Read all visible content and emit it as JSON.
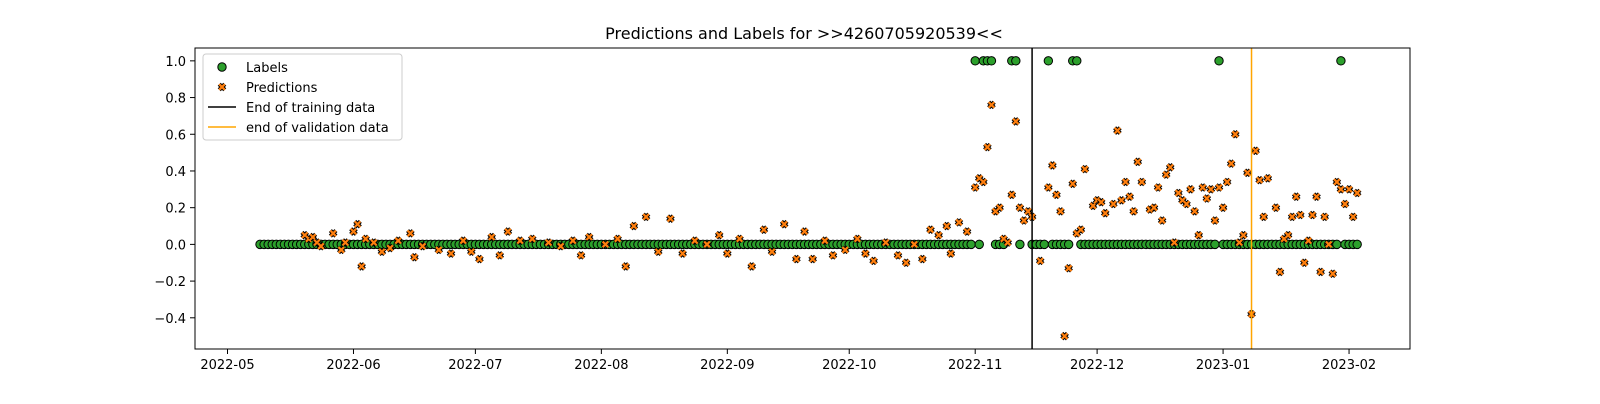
{
  "chart_data": {
    "type": "scatter",
    "title": "Predictions and Labels for >>4260705920539<<",
    "xlabel": "",
    "ylabel": "",
    "x_axis": {
      "type": "date",
      "range": [
        "2022-04-23",
        "2023-02-16"
      ],
      "tick_values": [
        "2022-05-01",
        "2022-06-01",
        "2022-07-01",
        "2022-08-01",
        "2022-09-01",
        "2022-10-01",
        "2022-11-01",
        "2022-12-01",
        "2023-01-01",
        "2023-02-01"
      ],
      "tick_labels": [
        "2022-05",
        "2022-06",
        "2022-07",
        "2022-08",
        "2022-09",
        "2022-10",
        "2022-11",
        "2022-12",
        "2023-01",
        "2023-02"
      ]
    },
    "y_axis": {
      "range": [
        -0.57,
        1.07
      ],
      "tick_values": [
        -0.4,
        -0.2,
        0.0,
        0.2,
        0.4,
        0.6,
        0.8,
        1.0
      ],
      "tick_labels": [
        "−0.4",
        "−0.2",
        "0.0",
        "0.2",
        "0.4",
        "0.6",
        "0.8",
        "1.0"
      ]
    },
    "grid": false,
    "legend_position": "top-left",
    "legend": [
      {
        "label": "Labels",
        "marker": "circle",
        "color": "#2ca02c"
      },
      {
        "label": "Predictions",
        "marker": "x",
        "color": "#ff7f0e"
      },
      {
        "label": "End of training data",
        "marker": "line",
        "color": "#000000"
      },
      {
        "label": "end of validation data",
        "marker": "line",
        "color": "#ffa500"
      }
    ],
    "vertical_lines": [
      {
        "label": "End of training data",
        "x": "2022-11-15",
        "color": "#000000"
      },
      {
        "label": "end of validation data",
        "x": "2023-01-08",
        "color": "#ffa500"
      }
    ],
    "series": [
      {
        "name": "Labels",
        "start": "2022-05-09",
        "end": "2023-02-03",
        "default_value": 0,
        "ones": [
          "2022-11-01",
          "2022-11-03",
          "2022-11-04",
          "2022-11-05",
          "2022-11-10",
          "2022-11-11",
          "2022-11-19",
          "2022-11-25",
          "2022-11-26",
          "2022-12-31",
          "2023-01-30"
        ],
        "gaps": [
          "2022-11-09",
          "2022-11-13",
          "2022-11-14"
        ]
      },
      {
        "name": "Predictions",
        "points": [
          [
            "2022-05-20",
            0.05
          ],
          [
            "2022-05-21",
            0.03
          ],
          [
            "2022-05-22",
            0.04
          ],
          [
            "2022-05-23",
            0.01
          ],
          [
            "2022-05-24",
            -0.01
          ],
          [
            "2022-05-27",
            0.06
          ],
          [
            "2022-05-29",
            -0.03
          ],
          [
            "2022-05-30",
            0.01
          ],
          [
            "2022-06-01",
            0.07
          ],
          [
            "2022-06-02",
            0.11
          ],
          [
            "2022-06-03",
            -0.12
          ],
          [
            "2022-06-04",
            0.03
          ],
          [
            "2022-06-06",
            0.01
          ],
          [
            "2022-06-08",
            -0.04
          ],
          [
            "2022-06-10",
            -0.02
          ],
          [
            "2022-06-12",
            0.02
          ],
          [
            "2022-06-15",
            0.06
          ],
          [
            "2022-06-16",
            -0.07
          ],
          [
            "2022-06-18",
            -0.01
          ],
          [
            "2022-06-22",
            -0.03
          ],
          [
            "2022-06-25",
            -0.05
          ],
          [
            "2022-06-28",
            0.02
          ],
          [
            "2022-06-30",
            -0.04
          ],
          [
            "2022-07-02",
            -0.08
          ],
          [
            "2022-07-05",
            0.04
          ],
          [
            "2022-07-07",
            -0.06
          ],
          [
            "2022-07-09",
            0.07
          ],
          [
            "2022-07-12",
            0.02
          ],
          [
            "2022-07-15",
            0.03
          ],
          [
            "2022-07-19",
            0.01
          ],
          [
            "2022-07-22",
            -0.01
          ],
          [
            "2022-07-25",
            0.02
          ],
          [
            "2022-07-27",
            -0.06
          ],
          [
            "2022-07-29",
            0.04
          ],
          [
            "2022-08-02",
            0.0
          ],
          [
            "2022-08-05",
            0.03
          ],
          [
            "2022-08-07",
            -0.12
          ],
          [
            "2022-08-09",
            0.1
          ],
          [
            "2022-08-12",
            0.15
          ],
          [
            "2022-08-15",
            -0.04
          ],
          [
            "2022-08-18",
            0.14
          ],
          [
            "2022-08-21",
            -0.05
          ],
          [
            "2022-08-24",
            0.02
          ],
          [
            "2022-08-27",
            0.0
          ],
          [
            "2022-08-30",
            0.05
          ],
          [
            "2022-09-01",
            -0.05
          ],
          [
            "2022-09-04",
            0.03
          ],
          [
            "2022-09-07",
            -0.12
          ],
          [
            "2022-09-10",
            0.08
          ],
          [
            "2022-09-12",
            -0.04
          ],
          [
            "2022-09-15",
            0.11
          ],
          [
            "2022-09-18",
            -0.08
          ],
          [
            "2022-09-20",
            0.07
          ],
          [
            "2022-09-22",
            -0.08
          ],
          [
            "2022-09-25",
            0.02
          ],
          [
            "2022-09-27",
            -0.06
          ],
          [
            "2022-09-30",
            -0.03
          ],
          [
            "2022-10-03",
            0.03
          ],
          [
            "2022-10-05",
            -0.05
          ],
          [
            "2022-10-07",
            -0.09
          ],
          [
            "2022-10-10",
            0.01
          ],
          [
            "2022-10-13",
            -0.06
          ],
          [
            "2022-10-15",
            -0.1
          ],
          [
            "2022-10-17",
            0.0
          ],
          [
            "2022-10-19",
            -0.08
          ],
          [
            "2022-10-21",
            0.08
          ],
          [
            "2022-10-23",
            0.05
          ],
          [
            "2022-10-25",
            0.1
          ],
          [
            "2022-10-26",
            -0.05
          ],
          [
            "2022-10-28",
            0.12
          ],
          [
            "2022-10-30",
            0.07
          ],
          [
            "2022-11-01",
            0.31
          ],
          [
            "2022-11-02",
            0.36
          ],
          [
            "2022-11-03",
            0.34
          ],
          [
            "2022-11-04",
            0.53
          ],
          [
            "2022-11-05",
            0.76
          ],
          [
            "2022-11-06",
            0.18
          ],
          [
            "2022-11-07",
            0.2
          ],
          [
            "2022-11-08",
            0.03
          ],
          [
            "2022-11-09",
            0.01
          ],
          [
            "2022-11-10",
            0.27
          ],
          [
            "2022-11-11",
            0.67
          ],
          [
            "2022-11-12",
            0.2
          ],
          [
            "2022-11-13",
            0.13
          ],
          [
            "2022-11-14",
            0.18
          ],
          [
            "2022-11-15",
            0.15
          ],
          [
            "2022-11-17",
            -0.09
          ],
          [
            "2022-11-19",
            0.31
          ],
          [
            "2022-11-20",
            0.43
          ],
          [
            "2022-11-21",
            0.27
          ],
          [
            "2022-11-22",
            0.18
          ],
          [
            "2022-11-23",
            -0.5
          ],
          [
            "2022-11-24",
            -0.13
          ],
          [
            "2022-11-25",
            0.33
          ],
          [
            "2022-11-26",
            0.06
          ],
          [
            "2022-11-27",
            0.08
          ],
          [
            "2022-11-28",
            0.41
          ],
          [
            "2022-11-30",
            0.21
          ],
          [
            "2022-12-01",
            0.24
          ],
          [
            "2022-12-02",
            0.23
          ],
          [
            "2022-12-03",
            0.17
          ],
          [
            "2022-12-05",
            0.22
          ],
          [
            "2022-12-06",
            0.62
          ],
          [
            "2022-12-07",
            0.24
          ],
          [
            "2022-12-08",
            0.34
          ],
          [
            "2022-12-09",
            0.26
          ],
          [
            "2022-12-10",
            0.18
          ],
          [
            "2022-12-11",
            0.45
          ],
          [
            "2022-12-12",
            0.34
          ],
          [
            "2022-12-14",
            0.19
          ],
          [
            "2022-12-15",
            0.2
          ],
          [
            "2022-12-16",
            0.31
          ],
          [
            "2022-12-17",
            0.13
          ],
          [
            "2022-12-18",
            0.38
          ],
          [
            "2022-12-19",
            0.42
          ],
          [
            "2022-12-20",
            0.01
          ],
          [
            "2022-12-21",
            0.28
          ],
          [
            "2022-12-22",
            0.24
          ],
          [
            "2022-12-23",
            0.22
          ],
          [
            "2022-12-24",
            0.3
          ],
          [
            "2022-12-25",
            0.18
          ],
          [
            "2022-12-26",
            0.05
          ],
          [
            "2022-12-27",
            0.31
          ],
          [
            "2022-12-28",
            0.25
          ],
          [
            "2022-12-29",
            0.3
          ],
          [
            "2022-12-30",
            0.13
          ],
          [
            "2022-12-31",
            0.31
          ],
          [
            "2023-01-01",
            0.2
          ],
          [
            "2023-01-02",
            0.34
          ],
          [
            "2023-01-03",
            0.44
          ],
          [
            "2023-01-04",
            0.6
          ],
          [
            "2023-01-05",
            0.01
          ],
          [
            "2023-01-06",
            0.05
          ],
          [
            "2023-01-07",
            0.39
          ],
          [
            "2023-01-08",
            -0.38
          ],
          [
            "2023-01-09",
            0.51
          ],
          [
            "2023-01-10",
            0.35
          ],
          [
            "2023-01-11",
            0.15
          ],
          [
            "2023-01-12",
            0.36
          ],
          [
            "2023-01-14",
            0.2
          ],
          [
            "2023-01-15",
            -0.15
          ],
          [
            "2023-01-16",
            0.03
          ],
          [
            "2023-01-17",
            0.05
          ],
          [
            "2023-01-18",
            0.15
          ],
          [
            "2023-01-19",
            0.26
          ],
          [
            "2023-01-20",
            0.16
          ],
          [
            "2023-01-21",
            -0.1
          ],
          [
            "2023-01-22",
            0.02
          ],
          [
            "2023-01-23",
            0.16
          ],
          [
            "2023-01-24",
            0.26
          ],
          [
            "2023-01-25",
            -0.15
          ],
          [
            "2023-01-26",
            0.15
          ],
          [
            "2023-01-27",
            0.0
          ],
          [
            "2023-01-28",
            -0.16
          ],
          [
            "2023-01-29",
            0.34
          ],
          [
            "2023-01-30",
            0.3
          ],
          [
            "2023-01-31",
            0.22
          ],
          [
            "2023-02-01",
            0.3
          ],
          [
            "2023-02-02",
            0.15
          ],
          [
            "2023-02-03",
            0.28
          ]
        ]
      }
    ]
  }
}
